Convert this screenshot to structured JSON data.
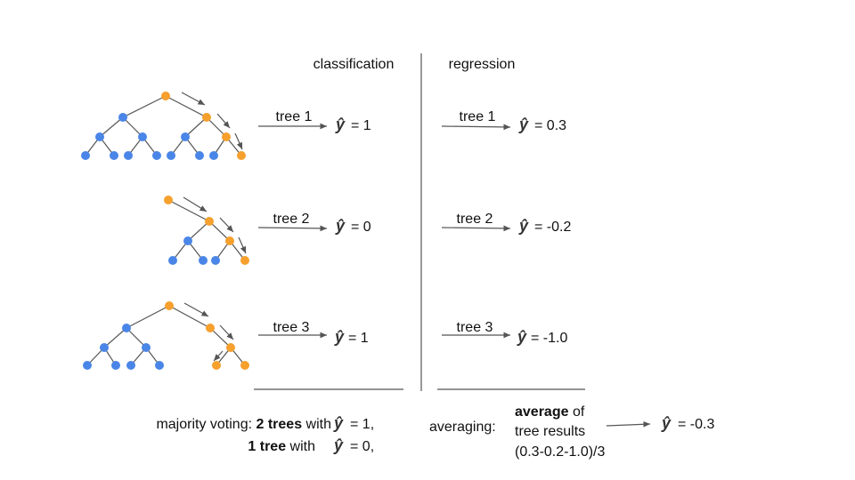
{
  "colors": {
    "internal_node": "#4A86E8",
    "path_node": "#F6A02D",
    "line": "#555555"
  },
  "headers": {
    "classification": "classification",
    "regression": "regression"
  },
  "yhat_symbol": "ŷ",
  "trees": [
    {
      "label": "tree 1",
      "class_value": "= 1",
      "reg_value": "= 0.3"
    },
    {
      "label": "tree 2",
      "class_value": "= 0",
      "reg_value": "= -0.2"
    },
    {
      "label": "tree 3",
      "class_value": "= 1",
      "reg_value": "= -1.0"
    }
  ],
  "classification_summary": {
    "prefix": "majority voting:",
    "bold1": "2 trees",
    "with1": "with",
    "value1": "= 1,",
    "bold2": "1 tree",
    "with2": "with",
    "value2": "= 0,"
  },
  "regression_summary": {
    "prefix": "averaging:",
    "bold": "average",
    "of": "of",
    "line2": "tree results",
    "line3": "(0.3-0.2-1.0)/3",
    "result": "= -0.3"
  }
}
